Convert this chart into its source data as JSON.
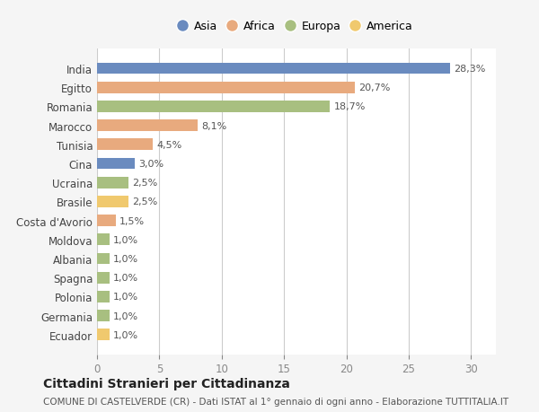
{
  "categories": [
    "India",
    "Egitto",
    "Romania",
    "Marocco",
    "Tunisia",
    "Cina",
    "Ucraina",
    "Brasile",
    "Costa d'Avorio",
    "Moldova",
    "Albania",
    "Spagna",
    "Polonia",
    "Germania",
    "Ecuador"
  ],
  "values": [
    28.3,
    20.7,
    18.7,
    8.1,
    4.5,
    3.0,
    2.5,
    2.5,
    1.5,
    1.0,
    1.0,
    1.0,
    1.0,
    1.0,
    1.0
  ],
  "labels": [
    "28,3%",
    "20,7%",
    "18,7%",
    "8,1%",
    "4,5%",
    "3,0%",
    "2,5%",
    "2,5%",
    "1,5%",
    "1,0%",
    "1,0%",
    "1,0%",
    "1,0%",
    "1,0%",
    "1,0%"
  ],
  "continents": [
    "Asia",
    "Africa",
    "Europa",
    "Africa",
    "Africa",
    "Asia",
    "Europa",
    "America",
    "Africa",
    "Europa",
    "Europa",
    "Europa",
    "Europa",
    "Europa",
    "America"
  ],
  "colors": {
    "Asia": "#6a8bbf",
    "Africa": "#e8aa7e",
    "Europa": "#a8bf80",
    "America": "#f0c96e"
  },
  "legend_order": [
    "Asia",
    "Africa",
    "Europa",
    "America"
  ],
  "title": "Cittadini Stranieri per Cittadinanza",
  "subtitle": "COMUNE DI CASTELVERDE (CR) - Dati ISTAT al 1° gennaio di ogni anno - Elaborazione TUTTITALIA.IT",
  "xlim": [
    0,
    32
  ],
  "xticks": [
    0,
    5,
    10,
    15,
    20,
    25,
    30
  ],
  "bg_color": "#f5f5f5",
  "bar_bg_color": "#ffffff",
  "grid_color": "#cccccc"
}
